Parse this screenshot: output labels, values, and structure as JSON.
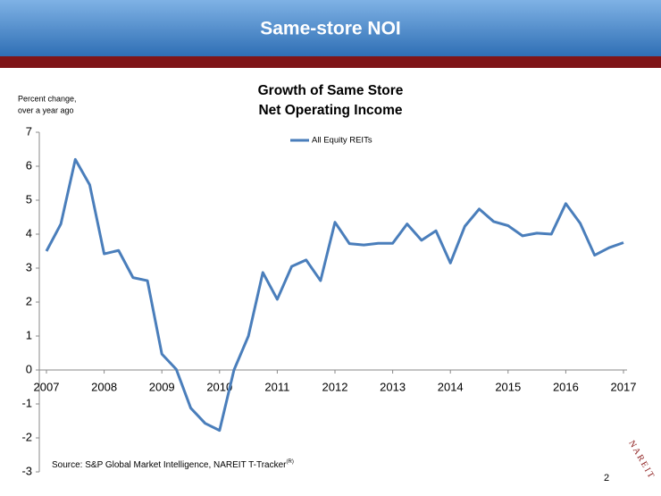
{
  "header": {
    "title": "Same-store NOI"
  },
  "chart_data": {
    "type": "line",
    "title": [
      "Growth of Same Store",
      "Net Operating Income"
    ],
    "y_label": [
      "Percent change,",
      "over a year ago"
    ],
    "x": [
      2007,
      2007.25,
      2007.5,
      2007.75,
      2008,
      2008.25,
      2008.5,
      2008.75,
      2009,
      2009.25,
      2009.5,
      2009.75,
      2010,
      2010.25,
      2010.5,
      2010.75,
      2011,
      2011.25,
      2011.5,
      2011.75,
      2012,
      2012.25,
      2012.5,
      2012.75,
      2013,
      2013.25,
      2013.5,
      2013.75,
      2014,
      2014.25,
      2014.5,
      2014.75,
      2015,
      2015.25,
      2015.5,
      2015.75,
      2016,
      2016.25,
      2016.5,
      2016.75,
      2017
    ],
    "series": [
      {
        "name": "All Equity REITs",
        "color": "#4a7ebb",
        "values": [
          3.5,
          4.3,
          6.2,
          5.45,
          3.42,
          3.52,
          2.72,
          2.63,
          0.47,
          0.02,
          -1.12,
          -1.57,
          -1.78,
          0.0,
          1.0,
          2.87,
          2.08,
          3.05,
          3.24,
          2.63,
          4.35,
          3.72,
          3.68,
          3.73,
          3.73,
          4.3,
          3.82,
          4.1,
          3.15,
          4.23,
          4.74,
          4.37,
          4.25,
          3.95,
          4.03,
          4.0,
          4.9,
          4.32,
          3.38,
          3.6,
          3.75
        ]
      }
    ],
    "xlim": [
      2007,
      2017
    ],
    "xticks": [
      2007,
      2008,
      2009,
      2010,
      2011,
      2012,
      2013,
      2014,
      2015,
      2016,
      2017
    ],
    "ylim": [
      -3,
      7
    ],
    "yticks": [
      -3,
      -2,
      -1,
      0,
      1,
      2,
      3,
      4,
      5,
      6,
      7
    ],
    "grid": false,
    "legend": "top"
  },
  "footer": {
    "source": "Source: S&P Global Market Intelligence, NAREIT T-Tracker",
    "source_mark": "(R)",
    "page": "2"
  },
  "logo": "NAREIT"
}
